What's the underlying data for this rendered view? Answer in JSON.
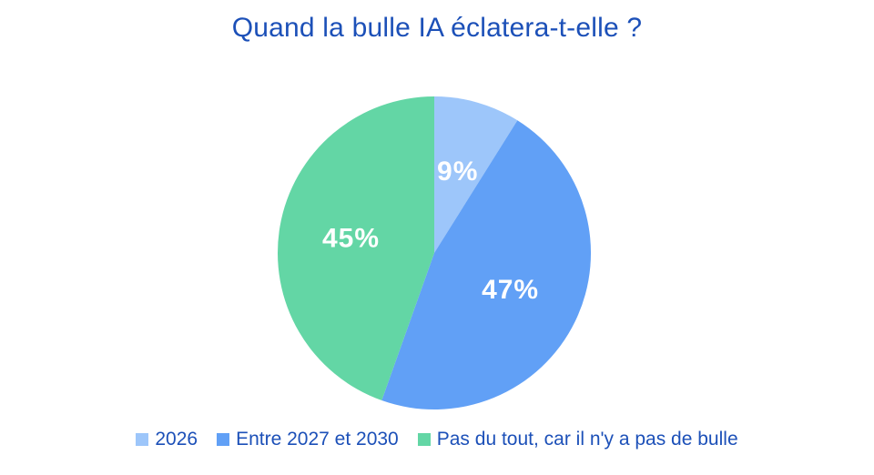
{
  "title": "Quand la bulle IA éclatera-t-elle ?",
  "colors": {
    "background": "#FFFFFF",
    "title_text": "#1C50B8",
    "legend_text": "#1C50B8",
    "slice_label_text": "#FFFFFF"
  },
  "chart_data": {
    "type": "pie",
    "title": "Quand la bulle IA éclatera-t-elle ?",
    "slices": [
      {
        "label": "2026",
        "value": 9,
        "value_label": "9%",
        "color": "#9DC6FA"
      },
      {
        "label": "Entre 2027 et 2030",
        "value": 47,
        "value_label": "47%",
        "color": "#61A0F6"
      },
      {
        "label": "Pas du tout, car il n'y a pas de bulle",
        "value": 45,
        "value_label": "45%",
        "color": "#63D6A5"
      }
    ],
    "start_angle_deg": 0,
    "direction": "clockwise",
    "labels_position": "inside",
    "legend_position": "bottom"
  }
}
